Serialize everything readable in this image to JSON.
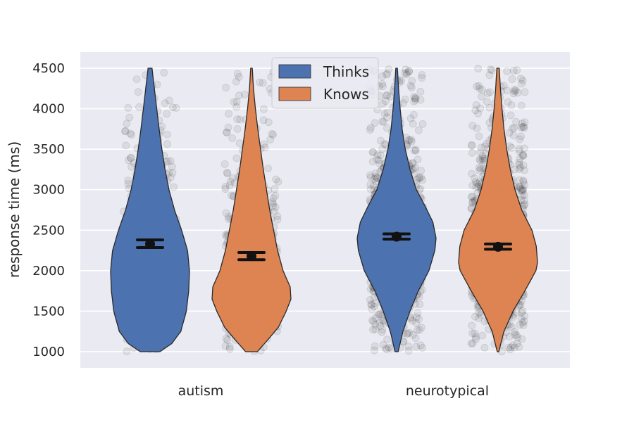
{
  "chart_data": {
    "type": "violin",
    "categories": [
      "autism",
      "neurotypical"
    ],
    "ylabel": "response time (ms)",
    "xlabel": "",
    "title": "",
    "ylim": [
      800,
      4700
    ],
    "yticks": [
      1000,
      1500,
      2000,
      2500,
      3000,
      3500,
      4000,
      4500
    ],
    "grid": true,
    "legend_position": "top-center",
    "background_color": "#eaeaf2",
    "series": [
      {
        "name": "Thinks",
        "color": "#4c72b0",
        "groups": [
          {
            "category": "autism",
            "min": 1000,
            "max": 4500,
            "mean": 2330,
            "ci": [
              2285,
              2380
            ],
            "density": [
              [
                1000,
                0.25
              ],
              [
                1100,
                0.55
              ],
              [
                1250,
                0.78
              ],
              [
                1500,
                0.92
              ],
              [
                1750,
                0.98
              ],
              [
                2000,
                1.0
              ],
              [
                2250,
                0.95
              ],
              [
                2500,
                0.8
              ],
              [
                2750,
                0.62
              ],
              [
                3000,
                0.48
              ],
              [
                3250,
                0.38
              ],
              [
                3500,
                0.3
              ],
              [
                3750,
                0.23
              ],
              [
                4000,
                0.17
              ],
              [
                4250,
                0.11
              ],
              [
                4500,
                0.05
              ]
            ]
          },
          {
            "category": "neurotypical",
            "min": 1000,
            "max": 4500,
            "mean": 2420,
            "ci": [
              2390,
              2455
            ],
            "density": [
              [
                1000,
                0.04
              ],
              [
                1250,
                0.16
              ],
              [
                1500,
                0.34
              ],
              [
                1750,
                0.55
              ],
              [
                2000,
                0.82
              ],
              [
                2250,
                0.97
              ],
              [
                2400,
                1.0
              ],
              [
                2600,
                0.92
              ],
              [
                2800,
                0.72
              ],
              [
                3000,
                0.5
              ],
              [
                3250,
                0.34
              ],
              [
                3500,
                0.22
              ],
              [
                3750,
                0.14
              ],
              [
                4000,
                0.09
              ],
              [
                4250,
                0.05
              ],
              [
                4500,
                0.02
              ]
            ]
          }
        ]
      },
      {
        "name": "Knows",
        "color": "#dd8452",
        "groups": [
          {
            "category": "autism",
            "min": 1000,
            "max": 4500,
            "mean": 2180,
            "ci": [
              2135,
              2225
            ],
            "density": [
              [
                1000,
                0.15
              ],
              [
                1150,
                0.42
              ],
              [
                1300,
                0.68
              ],
              [
                1500,
                0.88
              ],
              [
                1650,
                1.0
              ],
              [
                1800,
                0.98
              ],
              [
                2000,
                0.8
              ],
              [
                2250,
                0.66
              ],
              [
                2500,
                0.56
              ],
              [
                2750,
                0.46
              ],
              [
                3000,
                0.38
              ],
              [
                3250,
                0.3
              ],
              [
                3500,
                0.23
              ],
              [
                3750,
                0.16
              ],
              [
                4000,
                0.1
              ],
              [
                4250,
                0.05
              ],
              [
                4500,
                0.02
              ]
            ]
          },
          {
            "category": "neurotypical",
            "min": 1000,
            "max": 4500,
            "mean": 2295,
            "ci": [
              2265,
              2330
            ],
            "density": [
              [
                1000,
                0.02
              ],
              [
                1250,
                0.15
              ],
              [
                1500,
                0.38
              ],
              [
                1750,
                0.68
              ],
              [
                2000,
                0.96
              ],
              [
                2100,
                1.0
              ],
              [
                2300,
                0.97
              ],
              [
                2500,
                0.86
              ],
              [
                2750,
                0.6
              ],
              [
                3000,
                0.43
              ],
              [
                3250,
                0.31
              ],
              [
                3500,
                0.22
              ],
              [
                3750,
                0.15
              ],
              [
                4000,
                0.1
              ],
              [
                4250,
                0.06
              ],
              [
                4500,
                0.03
              ]
            ]
          }
        ]
      }
    ]
  }
}
